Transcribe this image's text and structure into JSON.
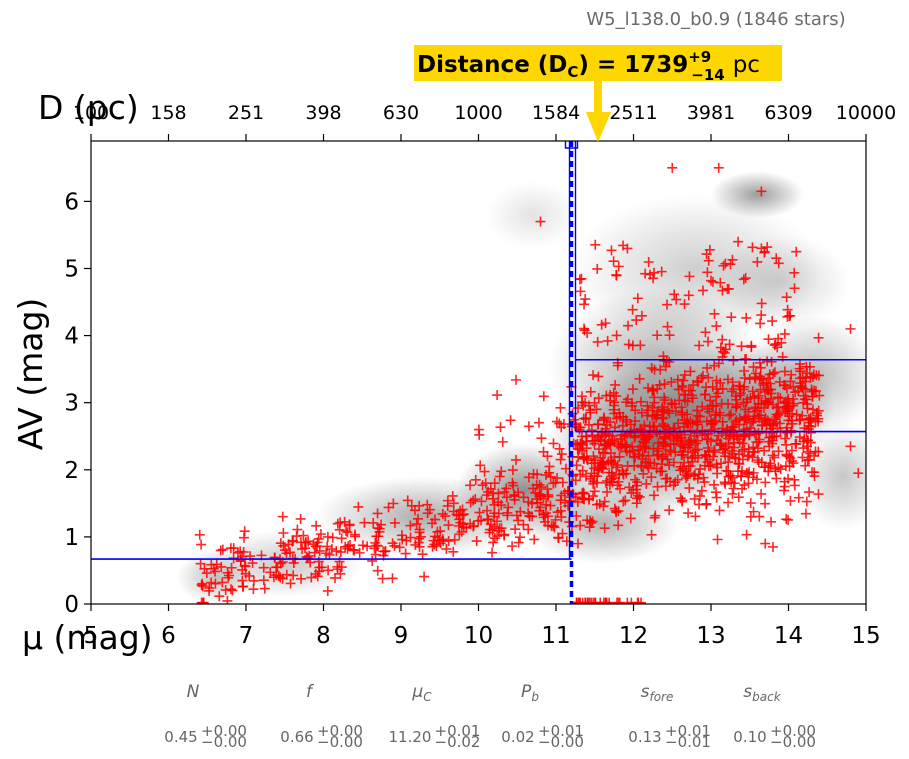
{
  "figure": {
    "subtitle": "W5_l138.0_b0.9 (1846 stars)",
    "badge_main": "Distance (D",
    "badge_sub": "C",
    "badge_eq": ") = 1739",
    "badge_sup": "+9",
    "badge_low": "−14",
    "badge_unit": "pc",
    "colors": {
      "badge": "#FFD700",
      "arrow": "#FFD700",
      "lines": "#0000FF",
      "points": "#FF0000"
    }
  },
  "chart_data": {
    "type": "scatter",
    "xlabel": "μ (mag)",
    "ylabel": "AV (mag)",
    "top_axis_label": "D (pc)",
    "xlim": [
      5,
      15
    ],
    "ylim": [
      0,
      6.9
    ],
    "x_ticks": [
      5,
      6,
      7,
      8,
      9,
      10,
      11,
      12,
      13,
      14,
      15
    ],
    "y_ticks": [
      0,
      1,
      2,
      3,
      4,
      5,
      6
    ],
    "top_ticks": [
      "100",
      "158",
      "251",
      "398",
      "630",
      "1000",
      "1584",
      "2511",
      "3981",
      "6309",
      "10000"
    ],
    "distance_modulus": 11.2,
    "foreground_extinction": 0.67,
    "background_extinction_low": 2.57,
    "background_extinction_high": 3.64,
    "star_count": 1846,
    "params": [
      {
        "name": "N",
        "value": "0.45",
        "plus": "+0.00",
        "minus": "−0.00"
      },
      {
        "name": "f",
        "value": "0.66",
        "plus": "+0.00",
        "minus": "−0.00"
      },
      {
        "name": "μC",
        "value": "11.20",
        "plus": "+0.01",
        "minus": "−0.02"
      },
      {
        "name": "Pb",
        "value": "0.02",
        "plus": "+0.01",
        "minus": "−0.00"
      },
      {
        "name": "sfore",
        "value": "0.13",
        "plus": "+0.01",
        "minus": "−0.01"
      },
      {
        "name": "sback",
        "value": "0.10",
        "plus": "+0.00",
        "minus": "−0.00"
      }
    ]
  }
}
